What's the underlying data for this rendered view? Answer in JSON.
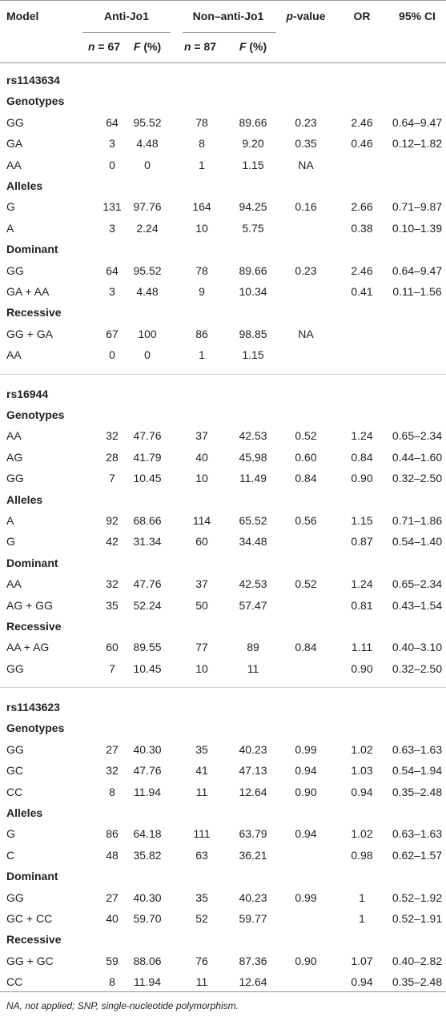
{
  "header": {
    "model": "Model",
    "group1": "Anti-Jo1",
    "group2": "Non–anti-Jo1",
    "p_symbol": "p",
    "p_text": "-value",
    "or": "OR",
    "ci": "95% CI",
    "n1_symbol": "n",
    "n1_text": "= 67",
    "f1_symbol": "F",
    "f1_text": "(%)",
    "n2_symbol": "n",
    "n2_text": "= 87",
    "f2_symbol": "F",
    "f2_text": "(%)"
  },
  "sections": [
    {
      "title": "rs1143634",
      "groups": [
        {
          "name": "Genotypes",
          "rows": [
            [
              "GG",
              "64",
              "95.52",
              "78",
              "89.66",
              "0.23",
              "2.46",
              "0.64–9.47"
            ],
            [
              "GA",
              "3",
              "4.48",
              "8",
              "9.20",
              "0.35",
              "0.46",
              "0.12–1.82"
            ],
            [
              "AA",
              "0",
              "0",
              "1",
              "1.15",
              "NA",
              null,
              null
            ]
          ]
        },
        {
          "name": "Alleles",
          "rows": [
            [
              "G",
              "131",
              "97.76",
              "164",
              "94.25",
              "0.16",
              "2.66",
              "0.71–9.87"
            ],
            [
              "A",
              "3",
              "2.24",
              "10",
              "5.75",
              null,
              "0.38",
              "0.10–1.39"
            ]
          ]
        },
        {
          "name": "Dominant",
          "rows": [
            [
              "GG",
              "64",
              "95.52",
              "78",
              "89.66",
              "0.23",
              "2.46",
              "0.64–9.47"
            ],
            [
              "GA + AA",
              "3",
              "4.48",
              "9",
              "10.34",
              null,
              "0.41",
              "0.11–1.56"
            ]
          ]
        },
        {
          "name": "Recessive",
          "rows": [
            [
              "GG + GA",
              "67",
              "100",
              "86",
              "98.85",
              "NA",
              null,
              null
            ],
            [
              "AA",
              "0",
              "0",
              "1",
              "1.15",
              null,
              null,
              null
            ]
          ]
        }
      ]
    },
    {
      "title": "rs16944",
      "groups": [
        {
          "name": "Genotypes",
          "rows": [
            [
              "AA",
              "32",
              "47.76",
              "37",
              "42.53",
              "0.52",
              "1.24",
              "0.65–2.34"
            ],
            [
              "AG",
              "28",
              "41.79",
              "40",
              "45.98",
              "0.60",
              "0.84",
              "0.44–1.60"
            ],
            [
              "GG",
              "7",
              "10.45",
              "10",
              "11.49",
              "0.84",
              "0.90",
              "0.32–2.50"
            ]
          ]
        },
        {
          "name": "Alleles",
          "rows": [
            [
              "A",
              "92",
              "68.66",
              "114",
              "65.52",
              "0.56",
              "1.15",
              "0.71–1.86"
            ],
            [
              "G",
              "42",
              "31.34",
              "60",
              "34.48",
              null,
              "0.87",
              "0.54–1.40"
            ]
          ]
        },
        {
          "name": "Dominant",
          "rows": [
            [
              "AA",
              "32",
              "47.76",
              "37",
              "42.53",
              "0.52",
              "1.24",
              "0.65–2.34"
            ],
            [
              "AG + GG",
              "35",
              "52.24",
              "50",
              "57.47",
              null,
              "0.81",
              "0.43–1.54"
            ]
          ]
        },
        {
          "name": "Recessive",
          "rows": [
            [
              "AA + AG",
              "60",
              "89.55",
              "77",
              "89",
              "0.84",
              "1.11",
              "0.40–3.10"
            ],
            [
              "GG",
              "7",
              "10.45",
              "10",
              "11",
              null,
              "0.90",
              "0.32–2.50"
            ]
          ]
        }
      ]
    },
    {
      "title": "rs1143623",
      "groups": [
        {
          "name": "Genotypes",
          "rows": [
            [
              "GG",
              "27",
              "40.30",
              "35",
              "40.23",
              "0.99",
              "1.02",
              "0.63–1.63"
            ],
            [
              "GC",
              "32",
              "47.76",
              "41",
              "47.13",
              "0.94",
              "1.03",
              "0.54–1.94"
            ],
            [
              "CC",
              "8",
              "11.94",
              "11",
              "12.64",
              "0.90",
              "0.94",
              "0.35–2.48"
            ]
          ]
        },
        {
          "name": "Alleles",
          "rows": [
            [
              "G",
              "86",
              "64.18",
              "111",
              "63.79",
              "0.94",
              "1.02",
              "0.63–1.63"
            ],
            [
              "C",
              "48",
              "35.82",
              "63",
              "36.21",
              null,
              "0.98",
              "0.62–1.57"
            ]
          ]
        },
        {
          "name": "Dominant",
          "rows": [
            [
              "GG",
              "27",
              "40.30",
              "35",
              "40.23",
              "0.99",
              "1",
              "0.52–1.92"
            ],
            [
              "GC + CC",
              "40",
              "59.70",
              "52",
              "59.77",
              null,
              "1",
              "0.52–1.91"
            ]
          ]
        },
        {
          "name": "Recessive",
          "rows": [
            [
              "GG + GC",
              "59",
              "88.06",
              "76",
              "87.36",
              "0.90",
              "1.07",
              "0.40–2.82"
            ],
            [
              "CC",
              "8",
              "11.94",
              "11",
              "12.64",
              null,
              "0.94",
              "0.35–2.48"
            ]
          ]
        }
      ]
    }
  ],
  "footnote": "NA, not applied; SNP, single-nucleotide polymorphism."
}
